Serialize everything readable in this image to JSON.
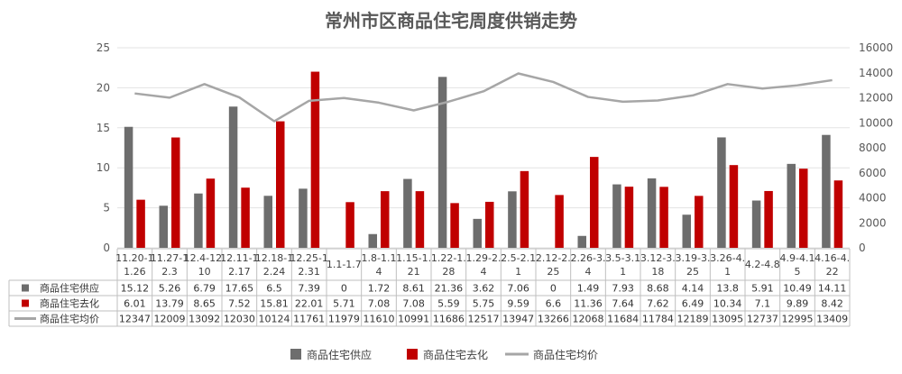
{
  "chart_data": {
    "type": "bar",
    "title": "常州市区商品住宅周度供销走势",
    "categories": [
      [
        "11.20-1",
        "1.26"
      ],
      [
        "11.27-1",
        "2.3"
      ],
      [
        "12.4-12.",
        "10"
      ],
      [
        "12.11-1",
        "2.17"
      ],
      [
        "12.18-1",
        "2.24"
      ],
      [
        "12.25-1",
        "2.31"
      ],
      [
        "1.1-1.7"
      ],
      [
        "1.8-1.1",
        "4"
      ],
      [
        "1.15-1.",
        "21"
      ],
      [
        "1.22-1.",
        "28"
      ],
      [
        "1.29-2.",
        "4"
      ],
      [
        "2.5-2.1",
        "1"
      ],
      [
        "2.12-2.",
        "25"
      ],
      [
        "2.26-3.",
        "4"
      ],
      [
        "3.5-3.1",
        "1"
      ],
      [
        "3.12-3.",
        "18"
      ],
      [
        "3.19-3.",
        "25"
      ],
      [
        "3.26-4.",
        "1"
      ],
      [
        "4.2-4.8"
      ],
      [
        "4.9-4.1",
        "5"
      ],
      [
        "4.16-4.",
        "22"
      ]
    ],
    "series": [
      {
        "name": "商品住宅供应",
        "type": "bar",
        "axis": "left",
        "color": "#6d6d6d",
        "values": [
          15.12,
          5.26,
          6.79,
          17.65,
          6.5,
          7.39,
          0,
          1.72,
          8.61,
          21.36,
          3.62,
          7.06,
          0,
          1.49,
          7.93,
          8.68,
          4.14,
          13.8,
          5.91,
          10.49,
          14.11
        ]
      },
      {
        "name": "商品住宅去化",
        "type": "bar",
        "axis": "left",
        "color": "#c00000",
        "values": [
          6.01,
          13.79,
          8.65,
          7.52,
          15.81,
          22.01,
          5.71,
          7.08,
          7.08,
          5.59,
          5.75,
          9.59,
          6.6,
          11.36,
          7.64,
          7.62,
          6.49,
          10.34,
          7.1,
          9.89,
          8.42
        ]
      },
      {
        "name": "商品住宅均价",
        "type": "line",
        "axis": "right",
        "color": "#a6a6a6",
        "values": [
          12347,
          12009,
          13092,
          12030,
          10124,
          11761,
          11979,
          11610,
          10991,
          11686,
          12517,
          13947,
          13266,
          12068,
          11684,
          11784,
          12189,
          13095,
          12737,
          12995,
          13409
        ]
      }
    ],
    "table_values": [
      [
        "15.12",
        "5.26",
        "6.79",
        "17.65",
        "6.5",
        "7.39",
        "0",
        "1.72",
        "8.61",
        "21.36",
        "3.62",
        "7.06",
        "0",
        "1.49",
        "7.93",
        "8.68",
        "4.14",
        "13.8",
        "5.91",
        "10.49",
        "14.11"
      ],
      [
        "6.01",
        "13.79",
        "8.65",
        "7.52",
        "15.81",
        "22.01",
        "5.71",
        "7.08",
        "7.08",
        "5.59",
        "5.75",
        "9.59",
        "6.6",
        "11.36",
        "7.64",
        "7.62",
        "6.49",
        "10.34",
        "7.1",
        "9.89",
        "8.42"
      ],
      [
        "12347",
        "12009",
        "13092",
        "12030",
        "10124",
        "11761",
        "11979",
        "11610",
        "10991",
        "11686",
        "12517",
        "13947",
        "13266",
        "12068",
        "11684",
        "11784",
        "12189",
        "13095",
        "12737",
        "12995",
        "13409"
      ]
    ],
    "y_left": {
      "min": 0,
      "max": 25,
      "ticks": [
        "0",
        "5",
        "10",
        "15",
        "20",
        "25"
      ]
    },
    "y_right": {
      "min": 0,
      "max": 16000,
      "ticks": [
        "0",
        "2000",
        "4000",
        "6000",
        "8000",
        "10000",
        "12000",
        "14000",
        "16000"
      ]
    },
    "grid": true,
    "legend_position": "bottom"
  }
}
